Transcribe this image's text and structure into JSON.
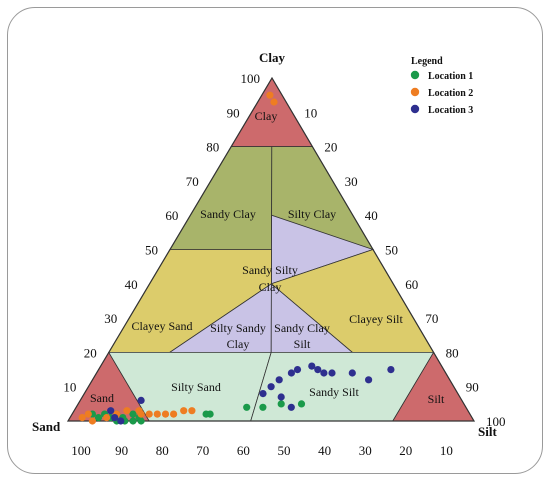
{
  "axes": {
    "top": "Clay",
    "left": "Sand",
    "right": "Silt"
  },
  "colors": {
    "red": "#cd6a6c",
    "olive": "#a8b46a",
    "yellow": "#dccc6b",
    "lavender": "#c9c3e6",
    "mint": "#cfe8d6",
    "edge": "#333333"
  },
  "regions": [
    {
      "key": "clay",
      "label": [
        "Clay"
      ]
    },
    {
      "key": "sandy_clay",
      "label": [
        "Sandy Clay"
      ]
    },
    {
      "key": "silty_clay",
      "label": [
        "Silty Clay"
      ]
    },
    {
      "key": "sandy_silty_clay",
      "label": [
        "Sandy Silty",
        "Clay"
      ]
    },
    {
      "key": "clayey_sand",
      "label": [
        "Clayey Sand"
      ]
    },
    {
      "key": "clayey_silt",
      "label": [
        "Clayey Silt"
      ]
    },
    {
      "key": "silty_sandy_clay",
      "label": [
        "Silty Sandy",
        "Clay"
      ]
    },
    {
      "key": "sandy_clay_silt",
      "label": [
        "Sandy Clay",
        "Silt"
      ]
    },
    {
      "key": "sand",
      "label": [
        "Sand"
      ]
    },
    {
      "key": "silty_sand",
      "label": [
        "Silty Sand"
      ]
    },
    {
      "key": "sandy_silt",
      "label": [
        "Sandy Silt"
      ]
    },
    {
      "key": "silt",
      "label": [
        "Silt"
      ]
    }
  ],
  "ticks": {
    "clay_side": [
      "100",
      "90",
      "80",
      "70",
      "60",
      "50",
      "40",
      "30",
      "20",
      "10"
    ],
    "silt_side": [
      "10",
      "20",
      "30",
      "40",
      "50",
      "60",
      "70",
      "80",
      "90",
      "100"
    ],
    "base": [
      "100",
      "90",
      "80",
      "70",
      "60",
      "50",
      "40",
      "30",
      "20",
      "10"
    ]
  },
  "legend": {
    "title": "Legend",
    "entries": [
      {
        "name": "Location 1",
        "color": "#1a9a4a"
      },
      {
        "name": "Location 2",
        "color": "#ee7d22"
      },
      {
        "name": "Location 3",
        "color": "#2e2f8f"
      }
    ]
  },
  "chart_data": {
    "type": "scatter",
    "ternary": true,
    "axes": [
      "Clay",
      "Sand",
      "Silt"
    ],
    "series": [
      {
        "name": "Location 1",
        "points": [
          {
            "clay": 2,
            "silt": 5
          },
          {
            "clay": 1,
            "silt": 7
          },
          {
            "clay": 2,
            "silt": 8
          },
          {
            "clay": 1,
            "silt": 10
          },
          {
            "clay": 2,
            "silt": 11
          },
          {
            "clay": 0,
            "silt": 12
          },
          {
            "clay": 1,
            "silt": 13
          },
          {
            "clay": 0,
            "silt": 14
          },
          {
            "clay": 2,
            "silt": 15
          },
          {
            "clay": 0,
            "silt": 16
          },
          {
            "clay": 1,
            "silt": 17
          },
          {
            "clay": 0,
            "silt": 18
          },
          {
            "clay": 2,
            "silt": 33
          },
          {
            "clay": 2,
            "silt": 34
          },
          {
            "clay": 4,
            "silt": 42
          },
          {
            "clay": 4,
            "silt": 46
          },
          {
            "clay": 5,
            "silt": 50
          },
          {
            "clay": 5,
            "silt": 55
          }
        ]
      },
      {
        "name": "Location 2",
        "points": [
          {
            "clay": 95,
            "silt": 2
          },
          {
            "clay": 93,
            "silt": 4
          },
          {
            "clay": 1,
            "silt": 3
          },
          {
            "clay": 2,
            "silt": 4
          },
          {
            "clay": 0,
            "silt": 6
          },
          {
            "clay": 1,
            "silt": 9
          },
          {
            "clay": 2,
            "silt": 11
          },
          {
            "clay": 3,
            "silt": 13
          },
          {
            "clay": 3,
            "silt": 16
          },
          {
            "clay": 2,
            "silt": 17
          },
          {
            "clay": 2,
            "silt": 19
          },
          {
            "clay": 2,
            "silt": 21
          },
          {
            "clay": 2,
            "silt": 23
          },
          {
            "clay": 2,
            "silt": 25
          },
          {
            "clay": 3,
            "silt": 27
          },
          {
            "clay": 3,
            "silt": 29
          }
        ]
      },
      {
        "name": "Location 3",
        "points": [
          {
            "clay": 3,
            "silt": 9
          },
          {
            "clay": 1,
            "silt": 11
          },
          {
            "clay": 0,
            "silt": 13
          },
          {
            "clay": 6,
            "silt": 15
          },
          {
            "clay": 8,
            "silt": 44
          },
          {
            "clay": 10,
            "silt": 45
          },
          {
            "clay": 12,
            "silt": 46
          },
          {
            "clay": 14,
            "silt": 48
          },
          {
            "clay": 15,
            "silt": 49
          },
          {
            "clay": 16,
            "silt": 52
          },
          {
            "clay": 15,
            "silt": 54
          },
          {
            "clay": 14,
            "silt": 56
          },
          {
            "clay": 14,
            "silt": 58
          },
          {
            "clay": 14,
            "silt": 63
          },
          {
            "clay": 12,
            "silt": 68
          },
          {
            "clay": 15,
            "silt": 72
          },
          {
            "clay": 7,
            "silt": 49
          },
          {
            "clay": 4,
            "silt": 53
          }
        ]
      }
    ]
  }
}
